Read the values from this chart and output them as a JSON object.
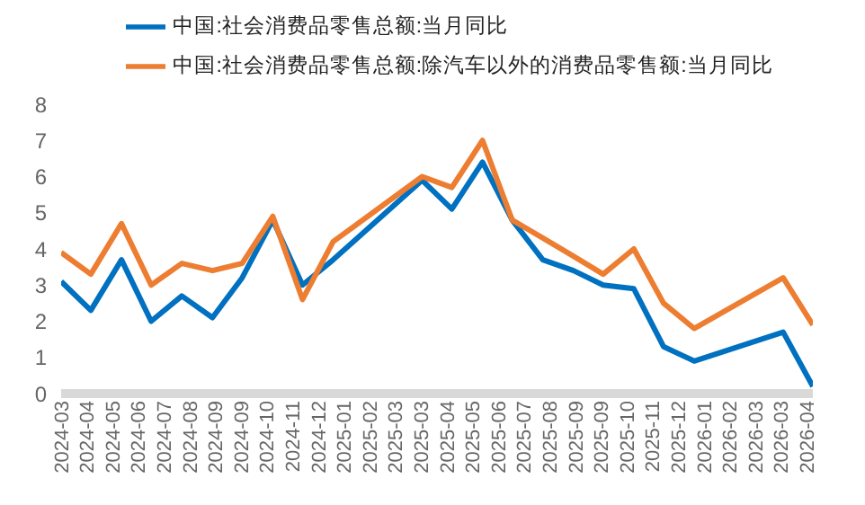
{
  "chart_data": {
    "type": "line",
    "x": [
      "2024-03-31",
      "2024-04-30",
      "2024-05-31",
      "2024-06-30",
      "2024-07-31",
      "2024-08-31",
      "2024-09-30",
      "2024-10-31",
      "2024-11-30",
      "2024-12-31",
      "2025-03-31",
      "2025-04-30",
      "2025-05-31",
      "2025-06-30",
      "2025-07-31",
      "2025-08-31",
      "2025-09-30",
      "2025-10-31",
      "2025-11-30",
      "2025-12-31",
      "2026-03-31",
      "2026-04-30"
    ],
    "series": [
      {
        "name": "中国:社会消费品零售总额:当月同比",
        "color": "#0070c0",
        "values": [
          3.1,
          2.3,
          3.7,
          2.0,
          2.7,
          2.1,
          3.2,
          4.8,
          3.0,
          3.7,
          5.9,
          5.1,
          6.4,
          4.8,
          3.7,
          3.4,
          3.0,
          2.9,
          1.3,
          0.9,
          1.7,
          0.2
        ]
      },
      {
        "name": "中国:社会消费品零售总额:除汽车以外的消费品零售额:当月同比",
        "color": "#ed7d31",
        "values": [
          3.9,
          3.3,
          4.7,
          3.0,
          3.6,
          3.4,
          3.6,
          4.9,
          2.6,
          4.2,
          6.0,
          5.7,
          7.0,
          4.8,
          4.3,
          3.8,
          3.3,
          4.0,
          2.5,
          1.8,
          3.2,
          1.9
        ]
      }
    ],
    "xlim": [
      "2024-03-31",
      "2026-04-30"
    ],
    "xticks": [
      {
        "value": "2024-03-31",
        "label": "2024-03"
      },
      {
        "value": "2024-04-26",
        "label": "2024-04"
      },
      {
        "value": "2024-05-22",
        "label": "2024-05"
      },
      {
        "value": "2024-06-17",
        "label": "2024-06"
      },
      {
        "value": "2024-07-13",
        "label": "2024-07"
      },
      {
        "value": "2024-08-08",
        "label": "2024-08"
      },
      {
        "value": "2024-09-03",
        "label": "2024-09"
      },
      {
        "value": "2024-09-29",
        "label": "2024-09"
      },
      {
        "value": "2024-10-25",
        "label": "2024-10"
      },
      {
        "value": "2024-11-20",
        "label": "2024-11"
      },
      {
        "value": "2024-12-16",
        "label": "2024-12"
      },
      {
        "value": "2025-01-11",
        "label": "2025-01"
      },
      {
        "value": "2025-02-06",
        "label": "2025-02"
      },
      {
        "value": "2025-03-04",
        "label": "2025-03"
      },
      {
        "value": "2025-03-30",
        "label": "2025-03"
      },
      {
        "value": "2025-04-25",
        "label": "2025-04"
      },
      {
        "value": "2025-05-21",
        "label": "2025-05"
      },
      {
        "value": "2025-06-16",
        "label": "2025-06"
      },
      {
        "value": "2025-07-12",
        "label": "2025-07"
      },
      {
        "value": "2025-08-07",
        "label": "2025-08"
      },
      {
        "value": "2025-09-02",
        "label": "2025-09"
      },
      {
        "value": "2025-09-28",
        "label": "2025-09"
      },
      {
        "value": "2025-10-24",
        "label": "2025-10"
      },
      {
        "value": "2025-11-19",
        "label": "2025-11"
      },
      {
        "value": "2025-12-15",
        "label": "2025-12"
      },
      {
        "value": "2026-01-10",
        "label": "2026-01"
      },
      {
        "value": "2026-02-05",
        "label": "2026-02"
      },
      {
        "value": "2026-03-03",
        "label": "2026-03"
      },
      {
        "value": "2026-03-29",
        "label": "2026-03"
      },
      {
        "value": "2026-04-24",
        "label": "2026-04"
      }
    ],
    "ylim": [
      0,
      8
    ],
    "yticks": [
      0,
      1,
      2,
      3,
      4,
      5,
      6,
      7,
      8
    ],
    "grid": false,
    "legend": "top",
    "marker": "none",
    "line_style": "solid"
  }
}
